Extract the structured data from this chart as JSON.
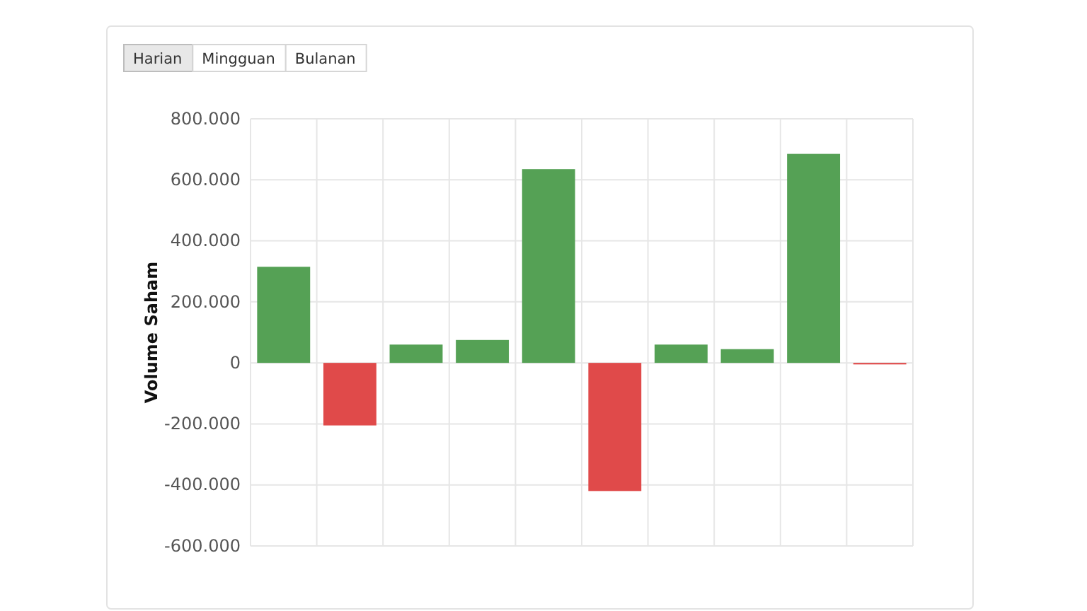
{
  "chart_data": {
    "type": "bar",
    "ylabel": "Volume Saham",
    "categories": [
      null,
      null,
      null,
      null,
      null,
      null,
      null,
      null,
      null,
      null
    ],
    "values": [
      315000,
      -205000,
      60000,
      75000,
      635000,
      -420000,
      60000,
      45000,
      685000,
      -5000
    ],
    "colors": [
      "#55a155",
      "#e04a4a",
      "#55a155",
      "#55a155",
      "#55a155",
      "#e04a4a",
      "#55a155",
      "#55a155",
      "#55a155",
      "#e04a4a"
    ],
    "ylim": [
      -600000,
      800000
    ],
    "yticks": [
      {
        "value": -600000,
        "label": "-600.000"
      },
      {
        "value": -400000,
        "label": "-400.000"
      },
      {
        "value": -200000,
        "label": "-200.000"
      },
      0,
      {
        "value": 200000,
        "label": "200.000"
      },
      {
        "value": 400000,
        "label": "400.000"
      },
      {
        "value": 600000,
        "label": "600.000"
      },
      {
        "value": 800000,
        "label": "800.000"
      }
    ],
    "grid": true,
    "annotations": [
      "Harian",
      "Mingguan",
      "Bulanan"
    ]
  }
}
